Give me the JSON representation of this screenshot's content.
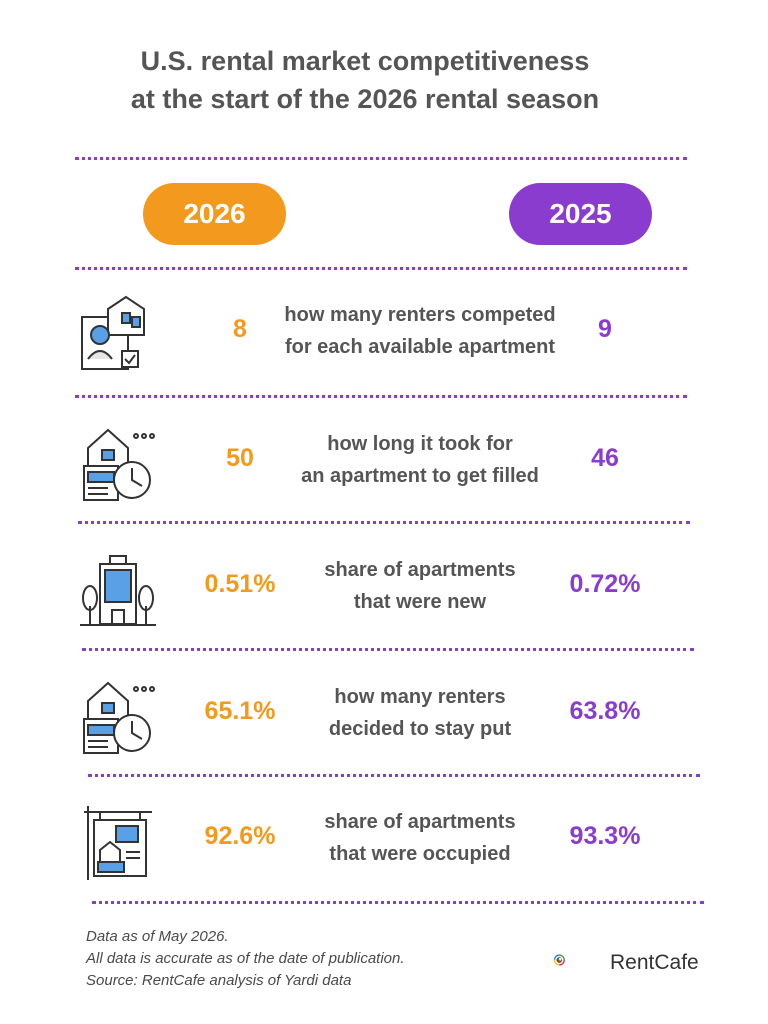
{
  "title": {
    "line1": "U.S. rental market competitiveness",
    "line2": "at the start of the 2026 rental season"
  },
  "columns": {
    "left_year": "2026",
    "right_year": "2025"
  },
  "colors": {
    "y2026": "#f39a1e",
    "y2025": "#8a3ccf",
    "text": "#555555"
  },
  "rows": [
    {
      "icon": "renter-profile-house-icon",
      "value_2026": "8",
      "desc1": "how many renters competed",
      "desc2": "for each available apartment",
      "value_2025": "9"
    },
    {
      "icon": "house-clock-icon",
      "value_2026": "50",
      "desc1": "how long it took for",
      "desc2": "an apartment to get filled",
      "value_2025": "46"
    },
    {
      "icon": "apartment-building-icon",
      "value_2026": "0.51%",
      "desc1": "share of apartments",
      "desc2": "that were new",
      "value_2025": "0.72%"
    },
    {
      "icon": "house-clock-icon",
      "value_2026": "65.1%",
      "desc1": "how many renters",
      "desc2": "decided to stay put",
      "value_2025": "63.8%"
    },
    {
      "icon": "rental-sign-icon",
      "value_2026": "92.6%",
      "desc1": "share of apartments",
      "desc2": "that were occupied",
      "value_2025": "93.3%"
    }
  ],
  "footer": {
    "line1": "Data as of May 2026.",
    "line2": "All data is accurate as of the date of publication.",
    "line3": "Source: RentCafe analysis of Yardi data"
  },
  "brand": {
    "name": "RentCafe"
  }
}
